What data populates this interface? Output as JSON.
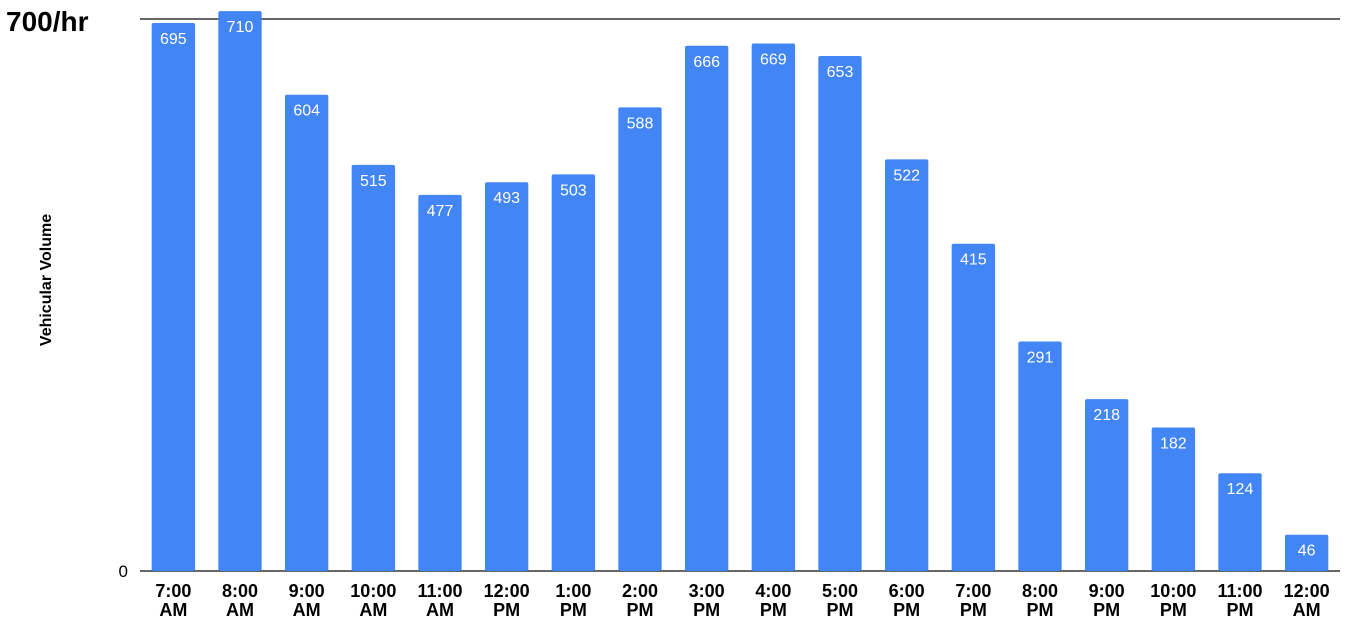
{
  "chart_data": {
    "type": "bar",
    "title": "",
    "xlabel": "",
    "ylabel": "Vehicular Volume",
    "ylim": [
      0,
      700
    ],
    "y_tick_labels": [
      "0",
      "700/hr"
    ],
    "grid": true,
    "legend": "none",
    "bar_color": "#4285f4",
    "categories": [
      [
        "7:00",
        "AM"
      ],
      [
        "8:00",
        "AM"
      ],
      [
        "9:00",
        "AM"
      ],
      [
        "10:00",
        "AM"
      ],
      [
        "11:00",
        "AM"
      ],
      [
        "12:00",
        "PM"
      ],
      [
        "1:00",
        "PM"
      ],
      [
        "2:00",
        "PM"
      ],
      [
        "3:00",
        "PM"
      ],
      [
        "4:00",
        "PM"
      ],
      [
        "5:00",
        "PM"
      ],
      [
        "6:00",
        "PM"
      ],
      [
        "7:00",
        "PM"
      ],
      [
        "8:00",
        "PM"
      ],
      [
        "9:00",
        "PM"
      ],
      [
        "10:00",
        "PM"
      ],
      [
        "11:00",
        "PM"
      ],
      [
        "12:00",
        "AM"
      ]
    ],
    "values": [
      695,
      710,
      604,
      515,
      477,
      493,
      503,
      588,
      666,
      669,
      653,
      522,
      415,
      291,
      218,
      182,
      124,
      46
    ]
  }
}
